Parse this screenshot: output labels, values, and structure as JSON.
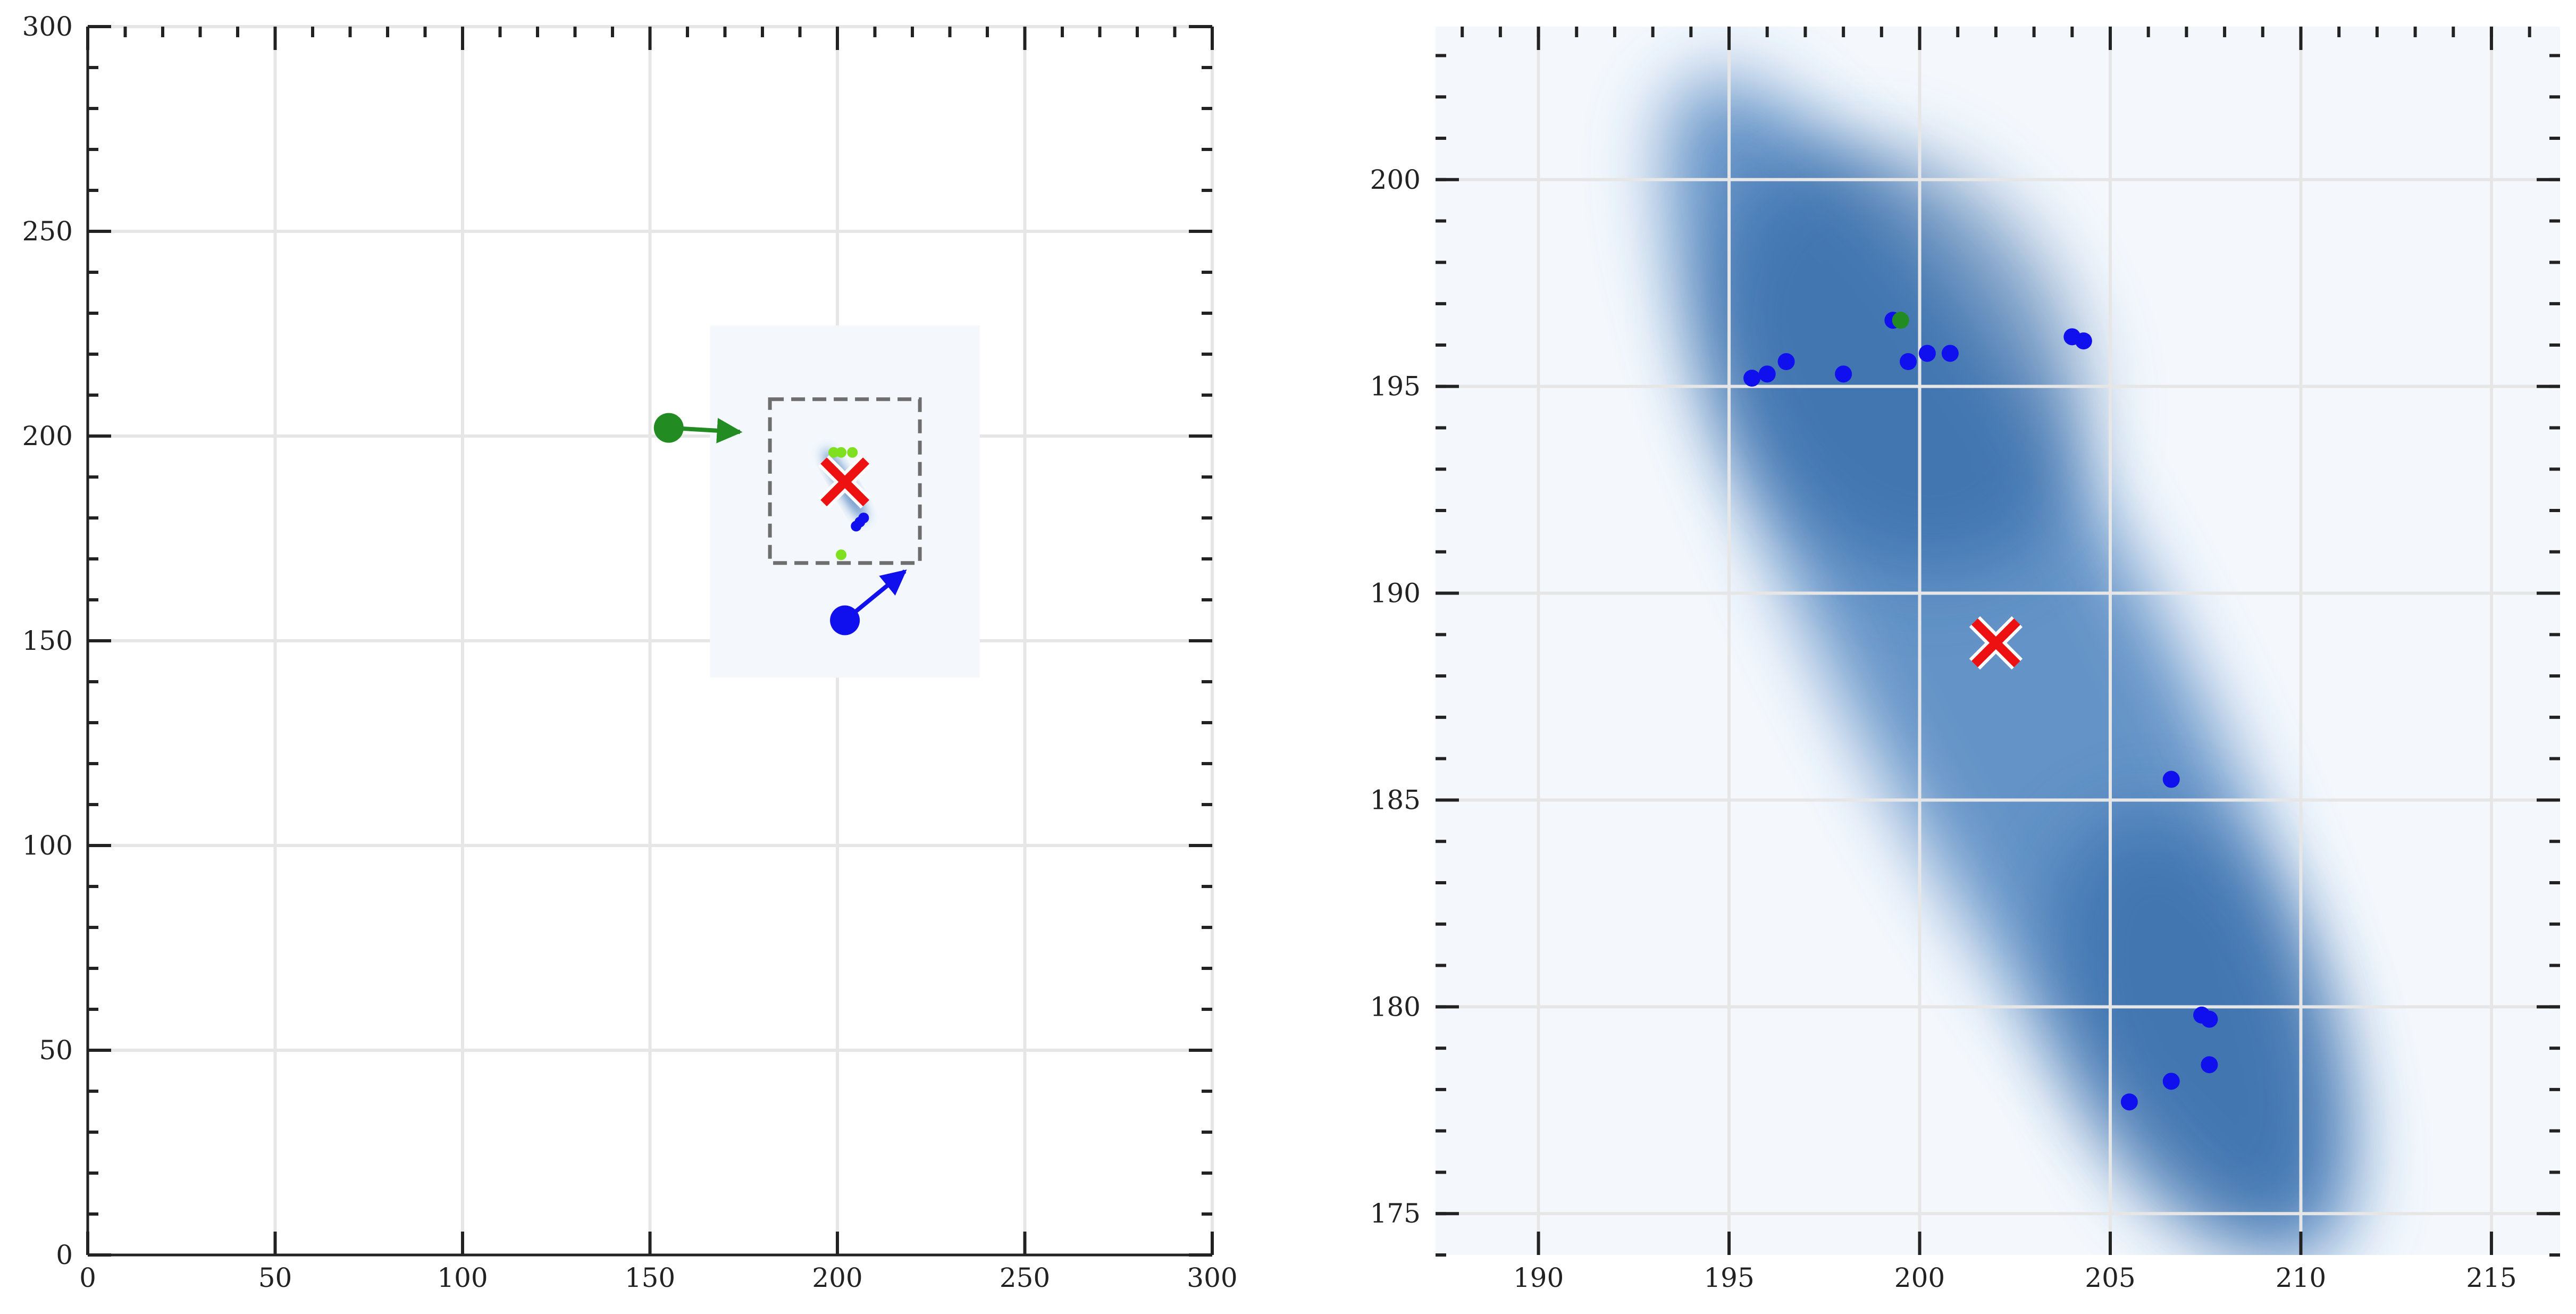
{
  "chart_data": [
    {
      "type": "scatter",
      "title": "",
      "xlabel": "",
      "ylabel": "",
      "xlim": [
        0,
        300
      ],
      "ylim": [
        0,
        300
      ],
      "grid": true,
      "xticks": [
        0,
        50,
        100,
        150,
        200,
        250,
        300
      ],
      "yticks": [
        0,
        50,
        100,
        150,
        200,
        250,
        300
      ],
      "density_extent": {
        "x": [
          166,
          238
        ],
        "y": [
          141,
          227
        ]
      },
      "zoom_box": {
        "x": [
          182,
          222
        ],
        "y": [
          169,
          209
        ]
      },
      "estimate_marker": {
        "x": 202,
        "y": 188.8
      },
      "green_start": {
        "x": 155,
        "y": 202
      },
      "green_arrow_tip": {
        "x": 174,
        "y": 201
      },
      "blue_start": {
        "x": 202,
        "y": 155
      },
      "blue_arrow_tip": {
        "x": 218,
        "y": 167
      },
      "blue_points": [
        [
          206,
          179
        ],
        [
          207,
          180
        ],
        [
          205,
          178
        ]
      ],
      "lime_points": [
        [
          199,
          196
        ],
        [
          201,
          196
        ],
        [
          204,
          196
        ],
        [
          201,
          171
        ]
      ],
      "colors": {
        "green": "#228b22",
        "blue": "#1010ee",
        "lime": "#7fe020",
        "red": "#ee1111",
        "density": "#2f6db3"
      }
    },
    {
      "type": "scatter",
      "title": "",
      "xlabel": "",
      "ylabel": "",
      "xlim": [
        187.3,
        216.8
      ],
      "ylim": [
        174,
        203.7
      ],
      "grid": true,
      "xticks": [
        190,
        195,
        200,
        205,
        210,
        215
      ],
      "yticks": [
        175,
        180,
        185,
        190,
        195,
        200
      ],
      "estimate_marker": {
        "x": 202,
        "y": 188.8
      },
      "blue_points": [
        [
          195.6,
          195.2
        ],
        [
          196.0,
          195.3
        ],
        [
          196.5,
          195.6
        ],
        [
          198.0,
          195.3
        ],
        [
          199.3,
          196.6
        ],
        [
          199.7,
          195.6
        ],
        [
          200.2,
          195.8
        ],
        [
          200.8,
          195.8
        ],
        [
          204.0,
          196.2
        ],
        [
          204.3,
          196.1
        ],
        [
          206.6,
          185.5
        ],
        [
          207.4,
          179.8
        ],
        [
          207.6,
          179.7
        ],
        [
          207.6,
          178.6
        ],
        [
          206.6,
          178.2
        ],
        [
          205.5,
          177.7
        ]
      ],
      "green_points": [
        [
          199.5,
          196.6
        ]
      ],
      "colors": {
        "green": "#228b22",
        "blue": "#1010ee",
        "red": "#ee1111",
        "density": "#2f6db3"
      }
    }
  ]
}
